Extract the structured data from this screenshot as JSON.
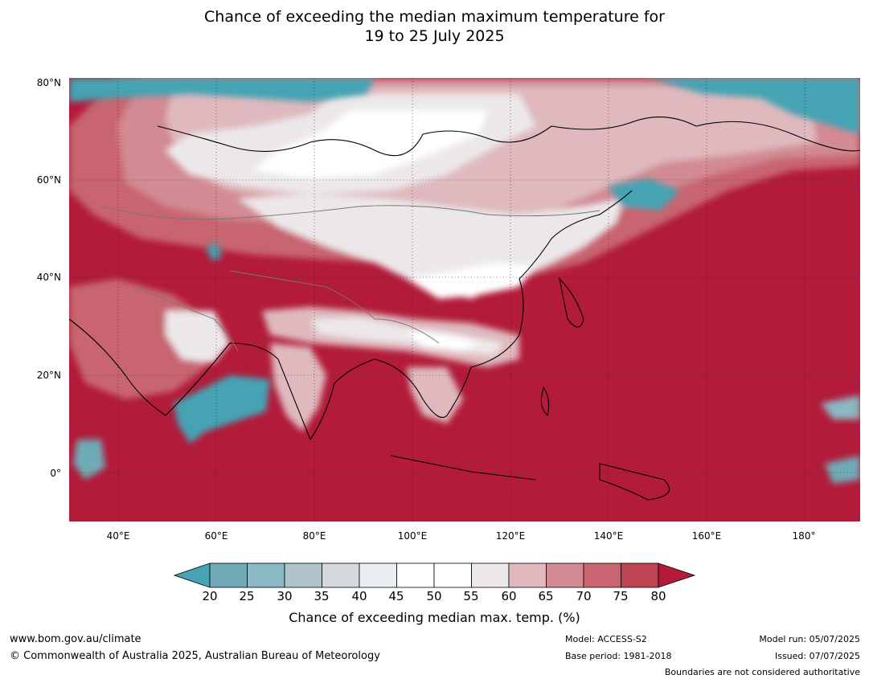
{
  "title": {
    "line1": "Chance of exceeding the median maximum temperature for",
    "line2": "19 to 25 July 2025"
  },
  "map": {
    "region": "Asia",
    "lat_labels": [
      "80°N",
      "60°N",
      "40°N",
      "20°N",
      "0°"
    ],
    "lon_labels": [
      "40°E",
      "60°E",
      "80°E",
      "100°E",
      "120°E",
      "140°E",
      "160°E",
      "180°"
    ],
    "lat_range": [
      -10,
      80
    ],
    "lon_range": [
      30,
      191
    ],
    "graticule": "dotted"
  },
  "colorbar": {
    "title": "Chance of exceeding median max. temp. (%)",
    "ticks": [
      "20",
      "25",
      "30",
      "35",
      "40",
      "45",
      "50",
      "55",
      "60",
      "65",
      "70",
      "75",
      "80"
    ],
    "colors": [
      "#45a3b3",
      "#6faab6",
      "#8ab8c3",
      "#afc4ca",
      "#d3d9dc",
      "#eaeff1",
      "#ffffff",
      "#ffffff",
      "#ece8ea",
      "#dfb9be",
      "#d38a93",
      "#c86570",
      "#bf4453",
      "#b21b3a"
    ],
    "extend": "both"
  },
  "footer": {
    "website": "www.bom.gov.au/climate",
    "copyright": "© Commonwealth of Australia 2025, Australian Bureau of Meteorology",
    "model": "Model: ACCESS-S2",
    "base_period": "Base period: 1981-2018",
    "model_run": "Model run: 05/07/2025",
    "issued": "Issued: 07/07/2025",
    "disclaimer": "Boundaries are not considered authoritative"
  }
}
